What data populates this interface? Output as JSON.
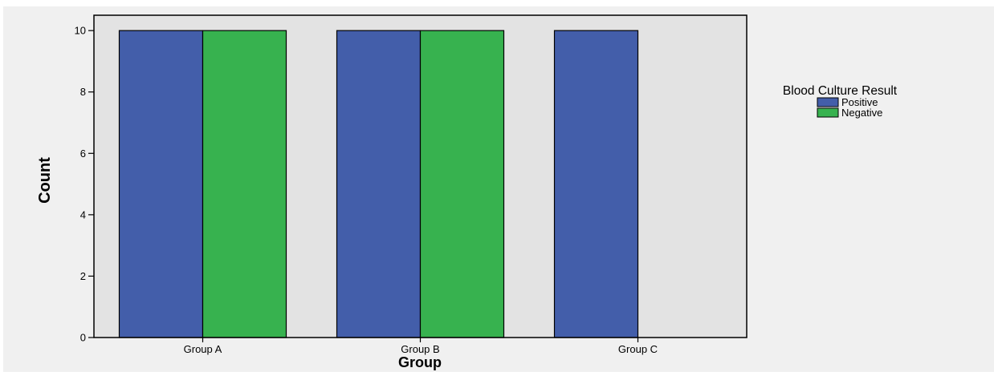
{
  "chart_data": {
    "type": "bar",
    "title": "",
    "xlabel": "Group",
    "ylabel": "Count",
    "categories": [
      "Group A",
      "Group B",
      "Group C"
    ],
    "series": [
      {
        "name": "Positive",
        "values": [
          10,
          10,
          10
        ],
        "color": "#435EAA"
      },
      {
        "name": "Negative",
        "values": [
          10,
          10,
          0
        ],
        "color": "#37B24F"
      }
    ],
    "ylim": [
      0,
      10.5
    ],
    "yticks": [
      0,
      2,
      4,
      6,
      8,
      10
    ],
    "grid": false,
    "legend": {
      "title": "Blood Culture Result",
      "position": "right"
    },
    "colors": {
      "outer_background": "#F0F0F0",
      "plot_background": "#E3E3E3"
    }
  }
}
